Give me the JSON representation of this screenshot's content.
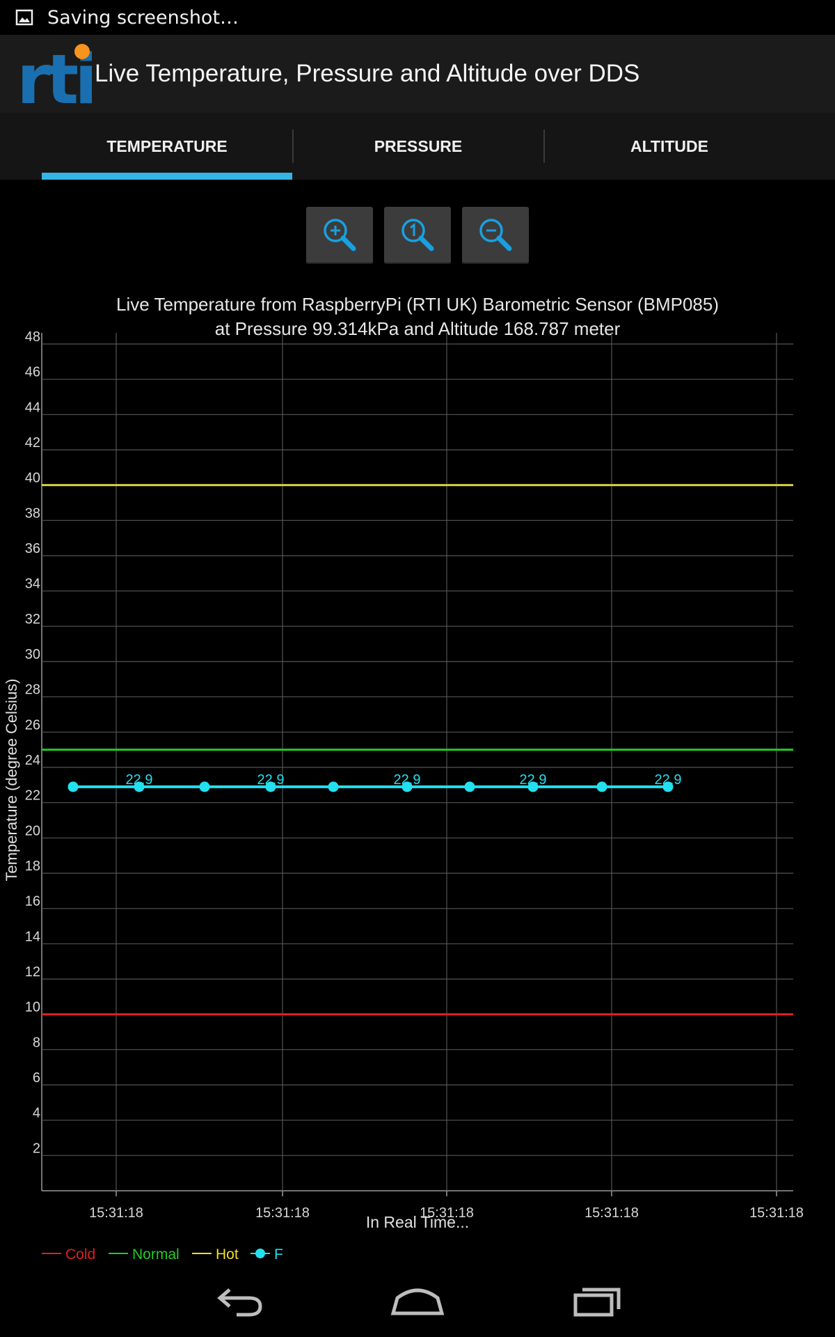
{
  "status_bar": {
    "notification": "Saving screenshot…",
    "icon": "image-icon"
  },
  "app": {
    "logo_text": "rti",
    "title": "Live Temperature, Pressure and Altitude over DDS"
  },
  "tabs": [
    {
      "label": "TEMPERATURE",
      "active": true
    },
    {
      "label": "PRESSURE",
      "active": false
    },
    {
      "label": "ALTITUDE",
      "active": false
    }
  ],
  "zoom_buttons": [
    {
      "name": "zoom-in",
      "icon": "zoom-in-icon"
    },
    {
      "name": "zoom-reset",
      "icon": "zoom-reset-icon"
    },
    {
      "name": "zoom-out",
      "icon": "zoom-out-icon"
    }
  ],
  "chart_data": {
    "type": "line",
    "title": "Live Temperature from RaspberryPi (RTI UK) Barometric Sensor (BMP085)",
    "subtitle": "at Pressure 99.314kPa and Altitude 168.787 meter",
    "xlabel": "In Real Time...",
    "ylabel": "Temperature (degree Celsius)",
    "ylim": [
      0,
      48
    ],
    "y_ticks": [
      2,
      4,
      6,
      8,
      10,
      12,
      14,
      16,
      18,
      20,
      22,
      24,
      26,
      28,
      30,
      32,
      34,
      36,
      38,
      40,
      42,
      44,
      46,
      48
    ],
    "x_tick_labels": [
      "15:31:18",
      "15:31:18",
      "15:31:18",
      "15:31:18",
      "15:31:18"
    ],
    "grid": true,
    "thresholds": [
      {
        "name": "Cold",
        "value": 10,
        "color": "#e02020"
      },
      {
        "name": "Normal",
        "value": 25,
        "color": "#22cc22"
      },
      {
        "name": "Hot",
        "value": 40,
        "color": "#d8d040"
      }
    ],
    "series": [
      {
        "name": "F",
        "color": "#22e0f0",
        "values": [
          22.9,
          22.9,
          22.9,
          22.9,
          22.9,
          22.9,
          22.9,
          22.9,
          22.9,
          22.9
        ],
        "point_labels": [
          "",
          "22.9",
          "",
          "22.9",
          "",
          "22.9",
          "",
          "22.9",
          "",
          "22.9"
        ]
      }
    ],
    "legend": [
      {
        "label": "Cold",
        "color": "#e02020"
      },
      {
        "label": "Normal",
        "color": "#22cc22"
      },
      {
        "label": "Hot",
        "color": "#f0e020"
      },
      {
        "label": "F",
        "color": "#22e0f0"
      }
    ],
    "legend_position": "bottom-left"
  },
  "nav": [
    {
      "name": "back",
      "icon": "back-icon"
    },
    {
      "name": "home",
      "icon": "home-icon"
    },
    {
      "name": "recents",
      "icon": "recents-icon"
    }
  ]
}
